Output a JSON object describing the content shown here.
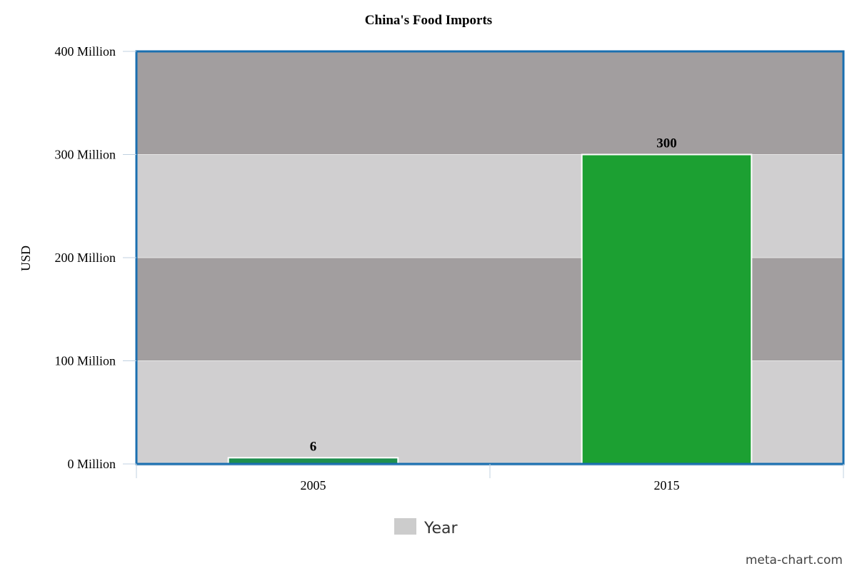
{
  "chart_data": {
    "type": "bar",
    "title": "China's Food Imports",
    "xlabel": "",
    "ylabel": "USD",
    "categories": [
      "2005",
      "2015"
    ],
    "series": [
      {
        "name": "Year",
        "values": [
          6,
          300
        ],
        "data_labels": [
          "6",
          "300"
        ]
      }
    ],
    "bar_colors": [
      "#1e8e4e",
      "#1ca032"
    ],
    "ylim": [
      0,
      400
    ],
    "yticks": [
      0,
      100,
      200,
      300,
      400
    ],
    "ytick_labels": [
      "0 Million",
      "100 Million",
      "200 Million",
      "300 Million",
      "400 Million"
    ],
    "grid": true,
    "band_colors": [
      "#d0cfd0",
      "#a29e9f"
    ],
    "plot_border_color": "#1a6fb0",
    "legend": {
      "position": "bottom",
      "entries": [
        {
          "label": "Year",
          "color": "#cccccc"
        }
      ]
    }
  },
  "footer": {
    "credit": "meta-chart.com"
  }
}
